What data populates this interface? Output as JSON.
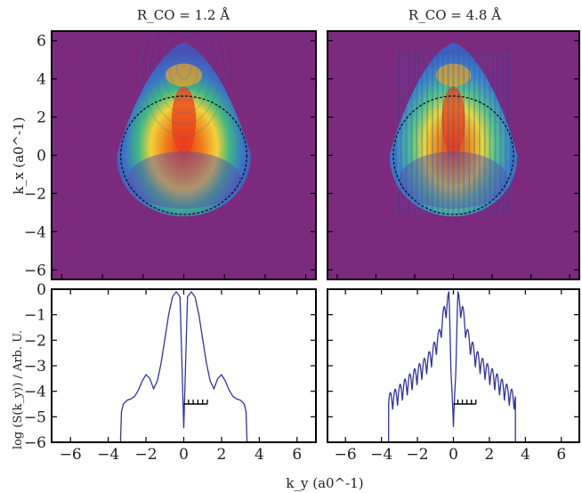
{
  "figure": {
    "panel_titles": [
      "R_CO = 1.2 Å",
      "R_CO = 4.8 Å"
    ],
    "top_ylabel": "k_x (a0^-1)",
    "bottom_ylabel": "log (S(k_y)) / Arb. U.",
    "xlabel": "k_y (a0^-1)"
  },
  "colors": {
    "map_background": "#7b2a7e",
    "line": "#34349a",
    "circle": "#111111"
  },
  "chart_data": [
    {
      "type": "heatmap",
      "title": "R_CO = 1.2 Å",
      "xlabel": "k_y (a0^-1)",
      "ylabel": "k_x (a0^-1)",
      "xlim": [
        -6.5,
        6.5
      ],
      "ylim": [
        -6.5,
        6.5
      ],
      "yticks": [
        -6,
        -4,
        -2,
        0,
        2,
        4,
        6
      ],
      "overlay": {
        "shape": "dashed circle",
        "center": [
          0,
          0
        ],
        "radius": 3.1
      },
      "description_values": {
        "peak_region_kx": [
          0,
          5.8
        ],
        "peak_region_ky": [
          -0.8,
          0.8
        ]
      }
    },
    {
      "type": "heatmap",
      "title": "R_CO = 4.8 Å",
      "xlabel": "k_y (a0^-1)",
      "ylabel": "k_x (a0^-1)",
      "xlim": [
        -6.5,
        6.5
      ],
      "ylim": [
        -6.5,
        6.5
      ],
      "overlay": {
        "shape": "dashed circle",
        "center": [
          0,
          0
        ],
        "radius": 3.1
      },
      "description_values": {
        "peak_region_kx": [
          0,
          5.8
        ],
        "peak_region_ky": [
          -1.0,
          1.0
        ]
      }
    },
    {
      "type": "line",
      "xlabel": "k_y (a0^-1)",
      "ylabel": "log (S(k_y)) / Arb. U.",
      "xlim": [
        -7,
        7
      ],
      "ylim": [
        -6,
        0
      ],
      "xticks": [
        -6,
        -4,
        -2,
        0,
        2,
        4,
        6
      ],
      "yticks": [
        0,
        -1,
        -2,
        -3,
        -4,
        -5,
        -6
      ],
      "series": [
        {
          "x": [
            -3.35,
            -3.3,
            -3.2,
            -3.0,
            -2.8,
            -2.6,
            -2.4,
            -2.2,
            -2.0,
            -1.8,
            -1.6,
            -1.4,
            -1.2,
            -1.0,
            -0.8,
            -0.6,
            -0.4,
            -0.2,
            0.0,
            0.2,
            0.4,
            0.6,
            0.8,
            1.0,
            1.2,
            1.4,
            1.6,
            1.8,
            2.0,
            2.2,
            2.4,
            2.6,
            2.8,
            3.0,
            3.2,
            3.3,
            3.35
          ],
          "y": [
            -6.0,
            -4.8,
            -4.5,
            -4.35,
            -4.3,
            -4.2,
            -3.95,
            -3.6,
            -3.35,
            -3.5,
            -3.9,
            -3.6,
            -2.9,
            -1.95,
            -1.0,
            -0.3,
            -0.1,
            -0.3,
            -5.45,
            -0.3,
            -0.1,
            -0.3,
            -1.0,
            -1.95,
            -2.9,
            -3.6,
            -3.9,
            -3.5,
            -3.35,
            -3.6,
            -3.95,
            -4.2,
            -4.3,
            -4.35,
            -4.5,
            -4.8,
            -6.0
          ]
        }
      ],
      "annotation": {
        "type": "scale bar",
        "x_start": 0.0,
        "x_end": 1.25,
        "y": -4.5,
        "ticks": 5
      }
    },
    {
      "type": "line",
      "xlabel": "k_y (a0^-1)",
      "ylabel": "",
      "xlim": [
        -7,
        7
      ],
      "ylim": [
        -6,
        0
      ],
      "xticks": [
        -6,
        -4,
        -2,
        0,
        2,
        4,
        6
      ],
      "series": [
        {
          "envelope_x": [
            -3.6,
            -3.2,
            -2.8,
            -2.4,
            -2.0,
            -1.6,
            -1.2,
            -0.8,
            -0.5,
            -0.25,
            0.0,
            0.25,
            0.5,
            0.8,
            1.2,
            1.6,
            2.0,
            2.4,
            2.8,
            3.2,
            3.6
          ],
          "envelope_y": [
            -4.1,
            -3.9,
            -3.6,
            -3.3,
            -3.0,
            -2.7,
            -2.3,
            -1.6,
            -0.6,
            -0.1,
            -5.4,
            -0.1,
            -0.6,
            -1.6,
            -2.3,
            -2.7,
            -3.0,
            -3.3,
            -3.6,
            -3.9,
            -4.1
          ],
          "oscillation_period": 0.27,
          "oscillation_depth": 0.75,
          "edge_drop_x": [
            -3.6,
            3.45
          ],
          "edge_drop_y": -6.0
        }
      ],
      "annotation": {
        "type": "scale bar",
        "x_start": 0.0,
        "x_end": 1.25,
        "y": -4.5,
        "ticks": 5
      }
    }
  ]
}
